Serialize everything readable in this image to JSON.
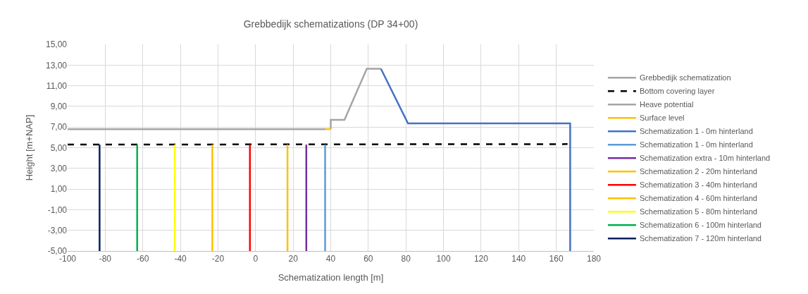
{
  "chart_data": {
    "type": "line",
    "title": "Grebbedijk schematizations (DP 34+00)",
    "xlabel": "Schematization length [m]",
    "ylabel": "Height [m+NAP]",
    "xlim": [
      -100,
      180
    ],
    "xticks": [
      -100,
      -80,
      -60,
      -40,
      -20,
      0,
      20,
      40,
      60,
      80,
      100,
      120,
      140,
      160,
      180
    ],
    "ylim": [
      -5,
      15
    ],
    "yticks": [
      {
        "value": -5,
        "label": "-5,00"
      },
      {
        "value": -3,
        "label": "-3,00"
      },
      {
        "value": -1,
        "label": "-1,00"
      },
      {
        "value": 1,
        "label": "1,00"
      },
      {
        "value": 3,
        "label": "3,00"
      },
      {
        "value": 5,
        "label": "5,00"
      },
      {
        "value": 7,
        "label": "7,00"
      },
      {
        "value": 9,
        "label": "9,00"
      },
      {
        "value": 11,
        "label": "11,00"
      },
      {
        "value": 13,
        "label": "13,00"
      },
      {
        "value": 15,
        "label": "15,00"
      }
    ],
    "grid": true,
    "legend": "right",
    "marker": "none",
    "series": [
      {
        "name": "Grebbedijk schematization",
        "color": "#a5a5a5",
        "x": [
          40,
          40,
          47.3,
          59.2,
          66.7
        ],
        "values": [
          6.8,
          7.7,
          7.7,
          12.65,
          12.65
        ]
      },
      {
        "name": "Bottom covering layer",
        "color": "#000000",
        "line_style": "dashed",
        "x": [
          -100,
          166
        ],
        "values": [
          5.3,
          5.35
        ]
      },
      {
        "name": "Heave potential",
        "color": "#a5a5a5",
        "x": [
          -100,
          37.4
        ],
        "values": [
          6.8,
          6.8
        ]
      },
      {
        "name": "Surface level",
        "color": "#ffc000",
        "x": [
          37.4,
          40
        ],
        "values": [
          6.8,
          6.8
        ]
      },
      {
        "name": "Schematization 1 - 0m hinterland",
        "color": "#4472c4",
        "x": [
          66.7,
          81.1,
          167.4,
          167.4
        ],
        "values": [
          12.65,
          7.35,
          7.35,
          -5
        ]
      },
      {
        "name": "Schematization 1 - 0m hinterland",
        "color": "#5b9bd5",
        "x": [
          37,
          37
        ],
        "values": [
          -5,
          5.3
        ]
      },
      {
        "name": "Schematization extra - 10m hinterland",
        "color": "#7030a0",
        "x": [
          27,
          27
        ],
        "values": [
          -5,
          5.3
        ]
      },
      {
        "name": "Schematization 2 - 20m hinterland",
        "color": "#ffc000",
        "x": [
          17,
          17
        ],
        "values": [
          -5,
          5.3
        ]
      },
      {
        "name": "Schematization 3 - 40m hinterland",
        "color": "#ff0000",
        "x": [
          -3,
          -3
        ],
        "values": [
          -5,
          5.3
        ]
      },
      {
        "name": "Schematization 4 - 60m hinterland",
        "color": "#ffc000",
        "x": [
          -23,
          -23
        ],
        "values": [
          -5,
          5.3
        ]
      },
      {
        "name": "Schematization 5 - 80m hinterland",
        "color": "#ffff00",
        "x": [
          -43,
          -43
        ],
        "values": [
          -5,
          5.3
        ]
      },
      {
        "name": "Schematization 6 - 100m hinterland",
        "color": "#00b050",
        "x": [
          -63,
          -63
        ],
        "values": [
          -5,
          5.3
        ]
      },
      {
        "name": "Schematization 7 - 120m hinterland",
        "color": "#002060",
        "x": [
          -83,
          -83
        ],
        "values": [
          -5,
          5.3
        ]
      }
    ]
  }
}
